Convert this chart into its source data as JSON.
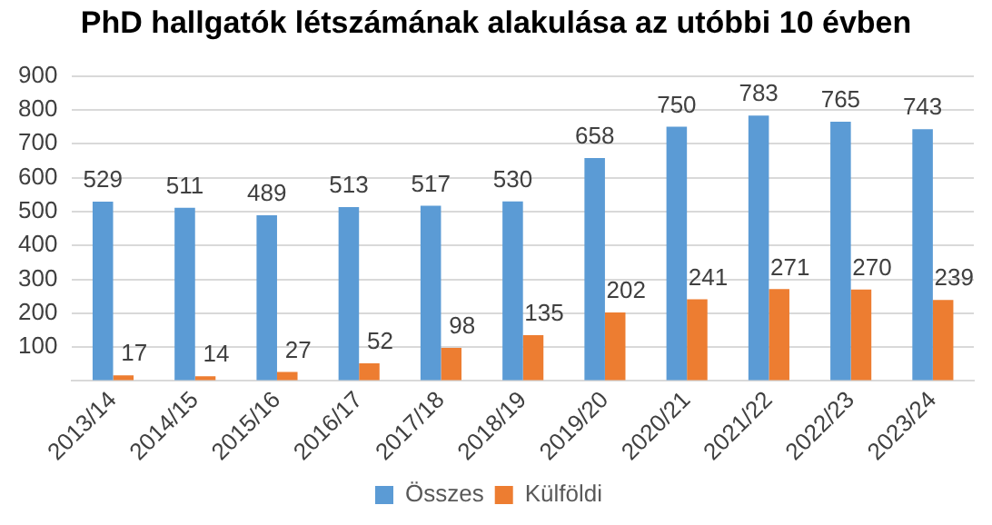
{
  "chart_data": {
    "type": "bar",
    "title": "PhD hallgatók létszámának alakulása az utóbbi 10 évben",
    "categories": [
      "2013/14",
      "2014/15",
      "2015/16",
      "2016/17",
      "2017/18",
      "2018/19",
      "2019/20",
      "2020/21",
      "2021/22",
      "2022/23",
      "2023/24"
    ],
    "series": [
      {
        "name": "Összes",
        "color": "#5b9bd5",
        "values": [
          529,
          511,
          489,
          513,
          517,
          530,
          658,
          750,
          783,
          765,
          743
        ]
      },
      {
        "name": "Külföldi",
        "color": "#ed7d31",
        "values": [
          17,
          14,
          27,
          52,
          98,
          135,
          202,
          241,
          271,
          270,
          239
        ]
      }
    ],
    "ylim": [
      0,
      900
    ],
    "yticks": [
      {
        "value": 0,
        "label": null
      },
      100,
      200,
      300,
      400,
      500,
      600,
      700,
      800,
      900
    ],
    "grid": "y",
    "legend": "bottom",
    "data_labels": true
  }
}
